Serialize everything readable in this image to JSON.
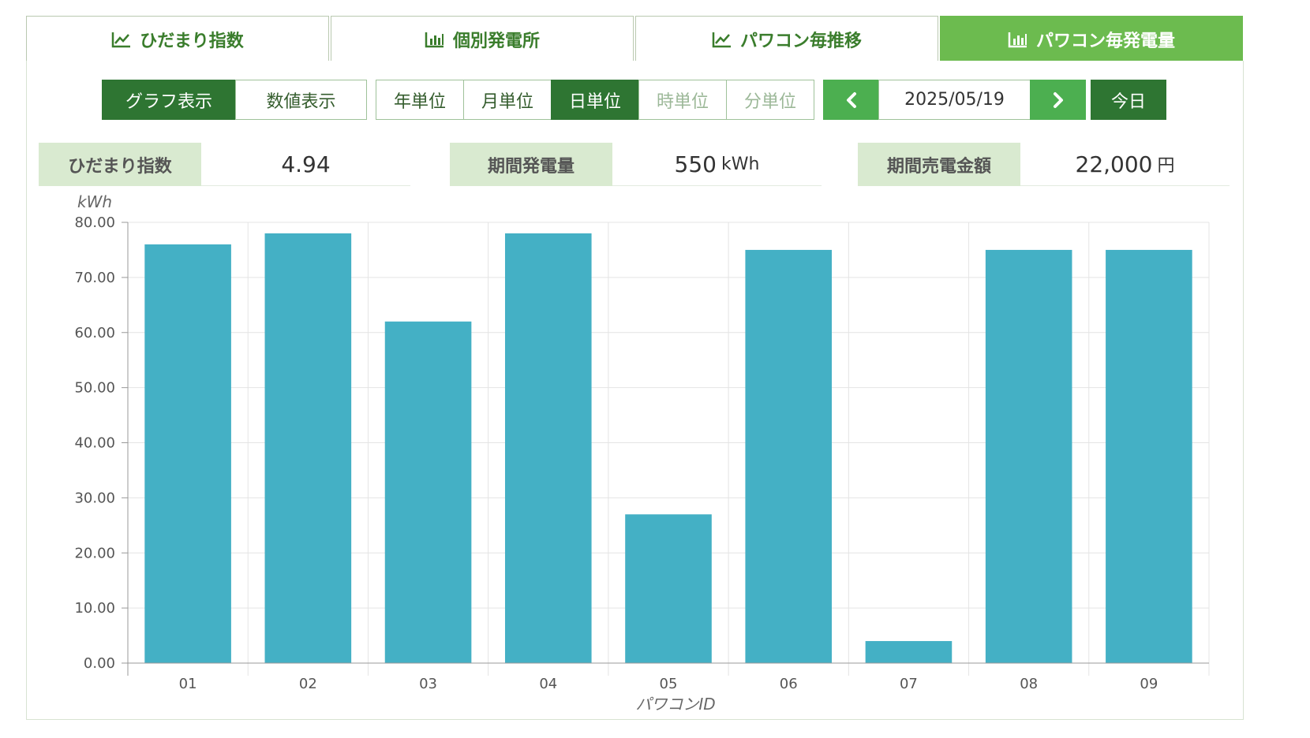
{
  "tabs": [
    {
      "label": "ひだまり指数",
      "icon": "line-chart-icon",
      "active": false
    },
    {
      "label": "個別発電所",
      "icon": "bar-chart-icon",
      "active": false
    },
    {
      "label": "パワコン毎推移",
      "icon": "line-chart-icon",
      "active": false
    },
    {
      "label": "パワコン毎発電量",
      "icon": "bar-chart-icon",
      "active": true
    }
  ],
  "view_mode": {
    "graph": "グラフ表示",
    "table": "数値表示",
    "selected": "graph"
  },
  "units": [
    {
      "label": "年単位",
      "state": "normal"
    },
    {
      "label": "月単位",
      "state": "normal"
    },
    {
      "label": "日単位",
      "state": "selected"
    },
    {
      "label": "時単位",
      "state": "disabled"
    },
    {
      "label": "分単位",
      "state": "disabled"
    }
  ],
  "date_nav": {
    "prev_icon": "chevron-left-icon",
    "date": "2025/05/19",
    "next_icon": "chevron-right-icon",
    "today": "今日"
  },
  "stats": [
    {
      "label": "ひだまり指数",
      "value": "4.94",
      "unit": ""
    },
    {
      "label": "期間発電量",
      "value": "550",
      "unit": "kWh"
    },
    {
      "label": "期間売電金額",
      "value": "22,000",
      "unit": "円"
    }
  ],
  "colors": {
    "bar": "#44b0c5",
    "accent": "#6cbb4f",
    "dark": "#2e7532"
  },
  "chart_data": {
    "type": "bar",
    "categories": [
      "01",
      "02",
      "03",
      "04",
      "05",
      "06",
      "07",
      "08",
      "09"
    ],
    "values": [
      76,
      78,
      62,
      78,
      27,
      75,
      4,
      75,
      75
    ],
    "ylabel": "kWh",
    "xlabel": "パワコンID",
    "ylim": [
      0,
      80
    ],
    "yticks": [
      "0.00",
      "10.00",
      "20.00",
      "30.00",
      "40.00",
      "50.00",
      "60.00",
      "70.00",
      "80.00"
    ],
    "grid": true,
    "legend": "none"
  }
}
